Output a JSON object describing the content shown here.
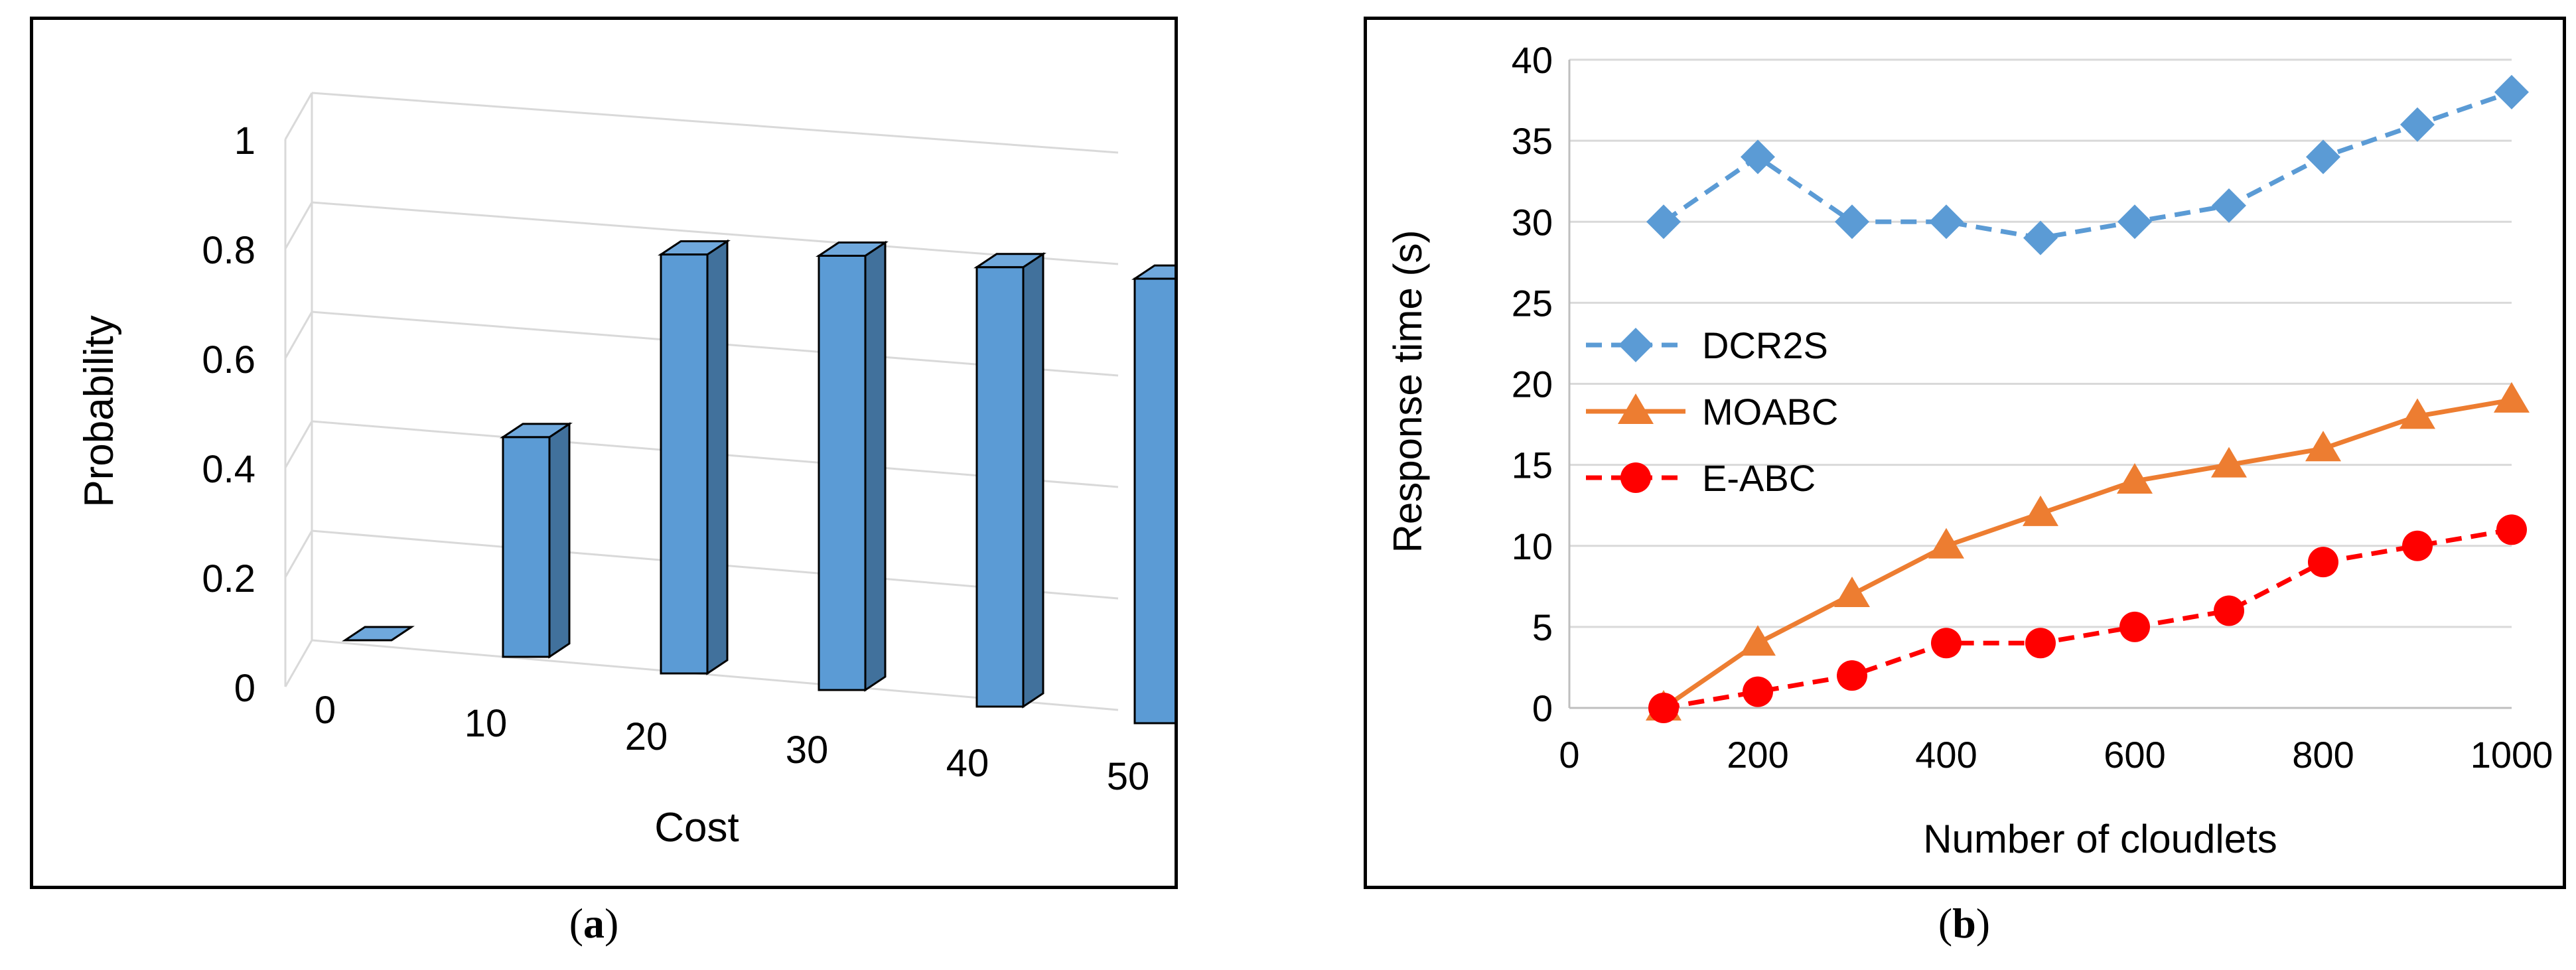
{
  "captions": {
    "a": {
      "open": "(",
      "letter": "a",
      "close": ")"
    },
    "b": {
      "open": "(",
      "letter": "b",
      "close": ")"
    }
  },
  "chart_data": [
    {
      "id": "a",
      "type": "bar",
      "style": "3d-column",
      "title": "",
      "xlabel": "Cost",
      "ylabel": "Probability",
      "categories": [
        "0",
        "10",
        "20",
        "30",
        "40",
        "50"
      ],
      "values": [
        0.0,
        0.43,
        0.82,
        0.85,
        0.86,
        0.87
      ],
      "ylim": [
        0,
        1
      ],
      "yticks": [
        "0",
        "0.2",
        "0.4",
        "0.6",
        "0.8",
        "1"
      ],
      "grid": true,
      "colors": {
        "bar_front": "#5b9bd5",
        "bar_top": "#6fa8dc",
        "bar_side": "#41719c",
        "outline": "#000000",
        "grid": "#d9d9d9"
      }
    },
    {
      "id": "b",
      "type": "line",
      "title": "",
      "xlabel": "Number of cloudlets",
      "ylabel": "Response time (s)",
      "xlim": [
        0,
        1000
      ],
      "ylim": [
        0,
        40
      ],
      "xticks": [
        "0",
        "200",
        "400",
        "600",
        "800",
        "1000"
      ],
      "yticks": [
        "0",
        "5",
        "10",
        "15",
        "20",
        "25",
        "30",
        "35",
        "40"
      ],
      "grid": true,
      "legend_position": "middle-left",
      "x": [
        100,
        200,
        300,
        400,
        500,
        600,
        700,
        800,
        900,
        1000
      ],
      "series": [
        {
          "name": "DCR2S",
          "values": [
            30,
            34,
            30,
            30,
            29,
            30,
            31,
            34,
            36,
            38
          ],
          "color": "#5b9bd5",
          "marker": "diamond",
          "dash": true
        },
        {
          "name": "MOABC",
          "values": [
            0,
            4,
            7,
            10,
            12,
            14,
            15,
            16,
            18,
            19
          ],
          "color": "#ed7d31",
          "marker": "triangle",
          "dash": false
        },
        {
          "name": "E-ABC",
          "values": [
            0,
            1,
            2,
            4,
            4,
            5,
            6,
            9,
            10,
            11
          ],
          "color": "#ff0000",
          "marker": "circle",
          "dash": true
        }
      ],
      "colors": {
        "axis": "#bfbfbf",
        "grid": "#d9d9d9"
      }
    }
  ]
}
